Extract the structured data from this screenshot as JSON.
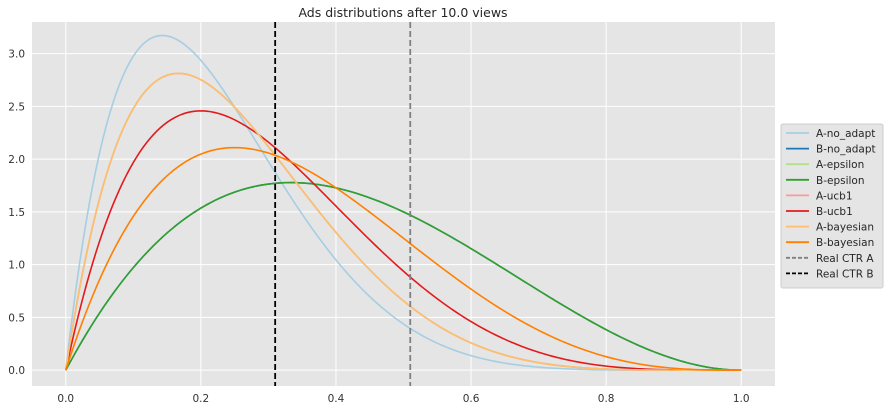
{
  "chart_data": {
    "type": "line",
    "title": "Ads distributions after 10.0 views",
    "xlabel": "",
    "ylabel": "",
    "xlim": [
      -0.05,
      1.05
    ],
    "ylim": [
      -0.15,
      3.3
    ],
    "x_ticks": [
      0.0,
      0.2,
      0.4,
      0.6,
      0.8,
      1.0
    ],
    "x_tick_labels": [
      "0.0",
      "0.2",
      "0.4",
      "0.6",
      "0.8",
      "1.0"
    ],
    "y_ticks": [
      0.0,
      0.5,
      1.0,
      1.5,
      2.0,
      2.5,
      3.0
    ],
    "y_tick_labels": [
      "0.0",
      "0.5",
      "1.0",
      "1.5",
      "2.0",
      "2.5",
      "3.0"
    ],
    "grid": true,
    "legend_position": "right, outside plot area",
    "series": [
      {
        "name": "A-no_adapt",
        "color": "#a6cee3",
        "beta_a": 2,
        "beta_b": 7
      },
      {
        "name": "B-no_adapt",
        "color": "#1f78b4",
        "beta_a": 2,
        "beta_b": 3
      },
      {
        "name": "A-epsilon",
        "color": "#b2df8a",
        "beta_a": 2,
        "beta_b": 6
      },
      {
        "name": "B-epsilon",
        "color": "#33a02c",
        "beta_a": 2,
        "beta_b": 3
      },
      {
        "name": "A-ucb1",
        "color": "#fb9a99",
        "beta_a": 2,
        "beta_b": 6
      },
      {
        "name": "B-ucb1",
        "color": "#e31a1c",
        "beta_a": 2,
        "beta_b": 5
      },
      {
        "name": "A-bayesian",
        "color": "#fdbf6f",
        "beta_a": 2,
        "beta_b": 6
      },
      {
        "name": "B-bayesian",
        "color": "#ff7f00",
        "beta_a": 2,
        "beta_b": 4
      }
    ],
    "reference_lines": [
      {
        "name": "Real CTR A",
        "x": 0.51,
        "color": "#808080",
        "style": "dashed"
      },
      {
        "name": "Real CTR B",
        "x": 0.31,
        "color": "#000000",
        "style": "dashed"
      }
    ]
  }
}
